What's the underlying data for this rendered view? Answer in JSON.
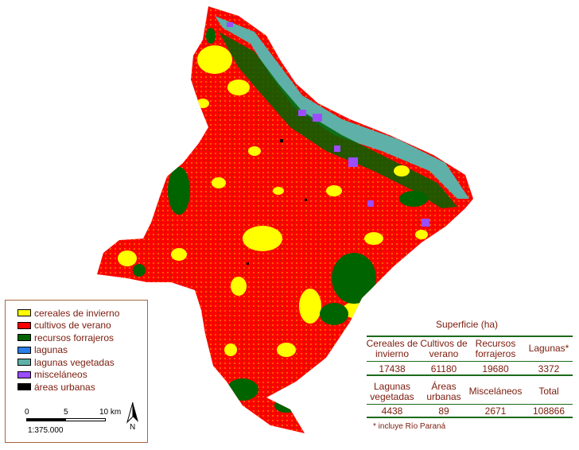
{
  "legend": {
    "items": [
      {
        "label": "cereales de invierno",
        "color": "#ffff00"
      },
      {
        "label": "cultivos de verano",
        "color": "#ff0000"
      },
      {
        "label": "recursos forrajeros",
        "color": "#006400"
      },
      {
        "label": "lagunas",
        "color": "#2a7fe8"
      },
      {
        "label": "lagunas vegetadas",
        "color": "#5fb0a8"
      },
      {
        "label": "misceláneos",
        "color": "#9b4dff"
      },
      {
        "label": "áreas urbanas",
        "color": "#000000"
      }
    ],
    "scale_labels": [
      "0",
      "5",
      "10 km"
    ],
    "scale_ratio": "1:375.000",
    "north_label": "N"
  },
  "table": {
    "title": "Superficie (ha)",
    "row1_headers": [
      "Cereales de invierno",
      "Cultivos de verano",
      "Recursos forrajeros",
      "Lagunas*"
    ],
    "row1_values": [
      "17438",
      "61180",
      "19680",
      "3372"
    ],
    "row2_headers": [
      "Lagunas vegetadas",
      "Áreas urbanas",
      "Misceláneos",
      "Total"
    ],
    "row2_values": [
      "4438",
      "89",
      "2671",
      "108866"
    ],
    "note": "* incluye Río Paraná"
  }
}
